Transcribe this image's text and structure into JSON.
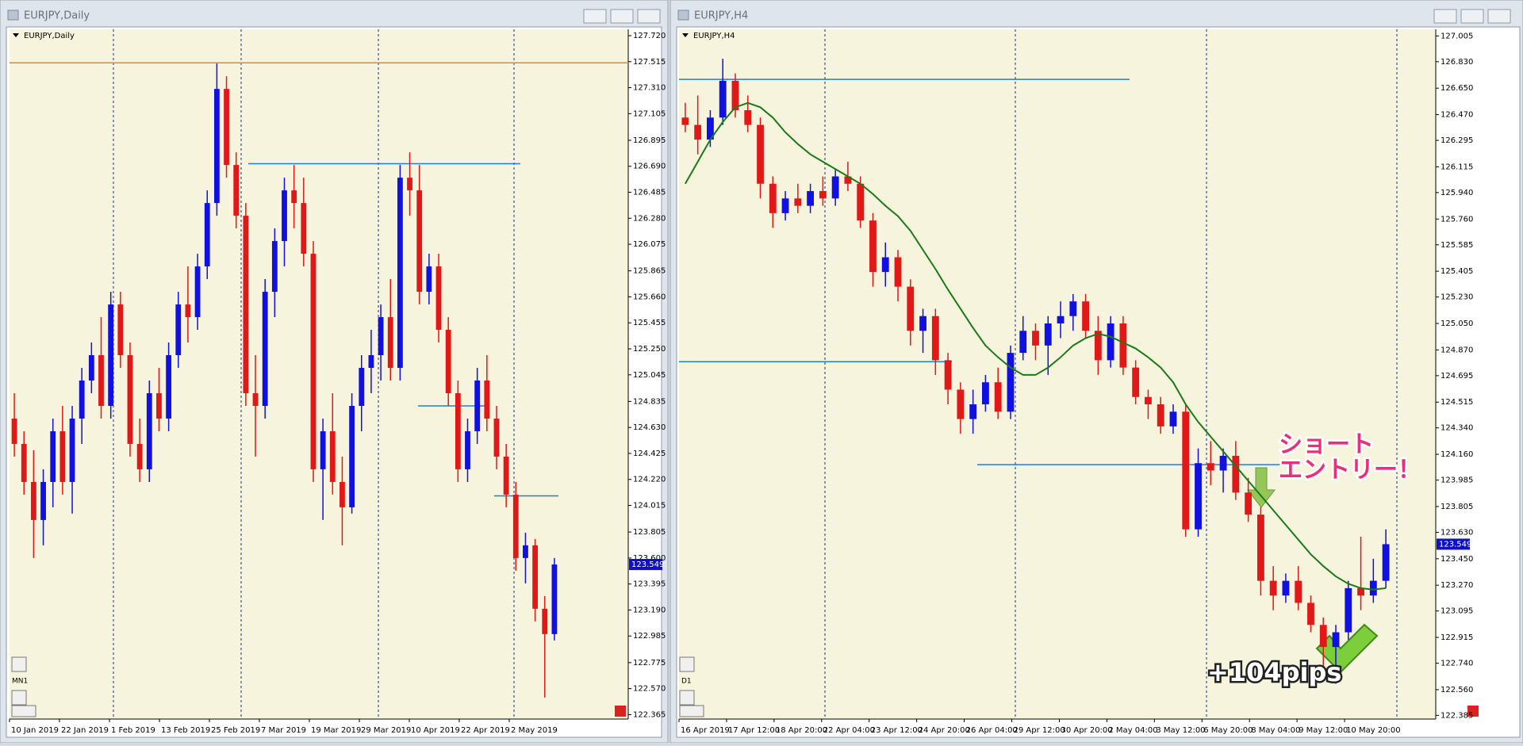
{
  "windows": [
    {
      "title": "EURJPY,Daily",
      "chart_label": "EURJPY,Daily",
      "period_label": "MN1",
      "ylim": [
        122.33,
        127.77
      ],
      "yticks": [
        {
          "value": 127.72,
          "label": "127.720"
        },
        127.515,
        {
          "value": 127.31,
          "label": "127.310"
        },
        127.105,
        126.895,
        {
          "value": 126.69,
          "label": "126.690"
        },
        126.485,
        {
          "value": 126.28,
          "label": "126.280"
        },
        126.075,
        125.865,
        {
          "value": 125.66,
          "label": "125.660"
        },
        125.455,
        {
          "value": 125.25,
          "label": "125.250"
        },
        125.045,
        124.835,
        {
          "value": 124.63,
          "label": "124.630"
        },
        124.425,
        {
          "value": 124.22,
          "label": "124.220"
        },
        124.015,
        123.805,
        {
          "value": 123.6,
          "label": "123.600"
        },
        123.395,
        {
          "value": 123.19,
          "label": "123.190"
        },
        122.985,
        122.775,
        {
          "value": 122.57,
          "label": "122.570"
        },
        122.365
      ],
      "x_labels": [
        "10 Jan 2019",
        "22 Jan 2019",
        "1 Feb 2019",
        "13 Feb 2019",
        "25 Feb 2019",
        "7 Mar 2019",
        "19 Mar 2019",
        "29 Mar 2019",
        "10 Apr 2019",
        "22 Apr 2019",
        "2 May 2019"
      ],
      "levels": [
        {
          "value": 127.506,
          "color": "#d98a2b"
        },
        {
          "value": 126.71,
          "color": "#1e7fd8"
        },
        {
          "value": 124.8,
          "color": "#1e7fd8"
        },
        {
          "value": 124.09,
          "color": "#1e7fd8"
        }
      ],
      "current_price": 123.549,
      "candles": [
        [
          124.7,
          124.9,
          124.4,
          124.5
        ],
        [
          124.5,
          124.6,
          124.1,
          124.2
        ],
        [
          124.2,
          124.45,
          123.6,
          123.9
        ],
        [
          123.9,
          124.3,
          123.7,
          124.2
        ],
        [
          124.2,
          124.7,
          124.0,
          124.6
        ],
        [
          124.6,
          124.8,
          124.1,
          124.2
        ],
        [
          124.2,
          124.8,
          123.95,
          124.7
        ],
        [
          124.7,
          125.1,
          124.5,
          125.0
        ],
        [
          125.0,
          125.3,
          124.9,
          125.2
        ],
        [
          125.2,
          125.5,
          124.7,
          124.8
        ],
        [
          124.8,
          125.7,
          124.7,
          125.6
        ],
        [
          125.6,
          125.7,
          125.1,
          125.2
        ],
        [
          125.2,
          125.3,
          124.4,
          124.5
        ],
        [
          124.5,
          124.7,
          124.2,
          124.3
        ],
        [
          124.3,
          125.0,
          124.2,
          124.9
        ],
        [
          124.9,
          125.1,
          124.6,
          124.7
        ],
        [
          124.7,
          125.3,
          124.6,
          125.2
        ],
        [
          125.2,
          125.7,
          125.1,
          125.6
        ],
        [
          125.6,
          125.9,
          125.3,
          125.5
        ],
        [
          125.5,
          126.0,
          125.4,
          125.9
        ],
        [
          125.9,
          126.5,
          125.8,
          126.4
        ],
        [
          126.4,
          127.5,
          126.3,
          127.3
        ],
        [
          127.3,
          127.4,
          126.6,
          126.7
        ],
        [
          126.7,
          126.8,
          126.2,
          126.3
        ],
        [
          126.3,
          126.4,
          124.8,
          124.9
        ],
        [
          124.9,
          125.2,
          124.4,
          124.8
        ],
        [
          124.8,
          125.8,
          124.7,
          125.7
        ],
        [
          125.7,
          126.2,
          125.5,
          126.1
        ],
        [
          126.1,
          126.6,
          125.9,
          126.5
        ],
        [
          126.5,
          126.7,
          126.2,
          126.4
        ],
        [
          126.4,
          126.6,
          125.9,
          126.0
        ],
        [
          126.0,
          126.1,
          124.2,
          124.3
        ],
        [
          124.3,
          124.7,
          123.9,
          124.6
        ],
        [
          124.6,
          124.9,
          124.1,
          124.2
        ],
        [
          124.2,
          124.4,
          123.7,
          124.0
        ],
        [
          124.0,
          124.9,
          123.95,
          124.8
        ],
        [
          124.8,
          125.2,
          124.6,
          125.1
        ],
        [
          125.1,
          125.4,
          124.9,
          125.2
        ],
        [
          125.2,
          125.6,
          125.0,
          125.5
        ],
        [
          125.5,
          125.8,
          125.0,
          125.1
        ],
        [
          125.1,
          126.7,
          125.0,
          126.6
        ],
        [
          126.6,
          126.8,
          126.3,
          126.5
        ],
        [
          126.5,
          126.7,
          125.6,
          125.7
        ],
        [
          125.7,
          126.0,
          125.6,
          125.9
        ],
        [
          125.9,
          126.0,
          125.3,
          125.4
        ],
        [
          125.4,
          125.5,
          124.8,
          124.9
        ],
        [
          124.9,
          125.0,
          124.2,
          124.3
        ],
        [
          124.3,
          124.7,
          124.2,
          124.6
        ],
        [
          124.6,
          125.1,
          124.5,
          125.0
        ],
        [
          125.0,
          125.2,
          124.6,
          124.7
        ],
        [
          124.7,
          124.8,
          124.3,
          124.4
        ],
        [
          124.4,
          124.5,
          124.0,
          124.1
        ],
        [
          124.1,
          124.2,
          123.5,
          123.6
        ],
        [
          123.6,
          123.8,
          123.4,
          123.7
        ],
        [
          123.7,
          123.75,
          123.1,
          123.2
        ],
        [
          123.2,
          123.3,
          122.5,
          123.0
        ],
        [
          123.0,
          123.6,
          122.95,
          123.549
        ]
      ]
    },
    {
      "title": "EURJPY,H4",
      "chart_label": "EURJPY,H4",
      "period_label": "D1",
      "ylim": [
        122.36,
        127.05
      ],
      "yticks": [
        127.005,
        {
          "value": 126.83,
          "label": "126.830"
        },
        {
          "value": 126.65,
          "label": "126.650"
        },
        {
          "value": 126.47,
          "label": "126.470"
        },
        126.295,
        126.115,
        {
          "value": 125.94,
          "label": "125.940"
        },
        {
          "value": 125.76,
          "label": "125.760"
        },
        125.585,
        125.405,
        {
          "value": 125.23,
          "label": "125.230"
        },
        {
          "value": 125.05,
          "label": "125.050"
        },
        {
          "value": 124.87,
          "label": "124.870"
        },
        124.695,
        124.515,
        {
          "value": 124.34,
          "label": "124.340"
        },
        {
          "value": 124.16,
          "label": "124.160"
        },
        123.985,
        123.805,
        {
          "value": 123.63,
          "label": "123.630"
        },
        {
          "value": 123.45,
          "label": "123.450"
        },
        {
          "value": 123.27,
          "label": "123.270"
        },
        123.095,
        122.915,
        {
          "value": 122.74,
          "label": "122.740"
        },
        {
          "value": 122.56,
          "label": "122.560"
        },
        122.385
      ],
      "x_labels": [
        "16 Apr 2019",
        "17 Apr 12:00",
        "18 Apr 20:00",
        "22 Apr 04:00",
        "23 Apr 12:00",
        "24 Apr 20:00",
        "26 Apr 04:00",
        "29 Apr 12:00",
        "30 Apr 20:00",
        "2 May 04:00",
        "3 May 12:00",
        "6 May 20:00",
        "8 May 04:00",
        "9 May 12:00",
        "10 May 20:00"
      ],
      "levels": [
        {
          "value": 126.71,
          "color": "#1e7fd8"
        },
        {
          "value": 124.79,
          "color": "#1e7fd8"
        },
        {
          "value": 124.09,
          "color": "#1e7fd8"
        }
      ],
      "current_price": 123.549,
      "ma_color": "#1a7a1a",
      "ma": [
        126.0,
        126.15,
        126.3,
        126.42,
        126.52,
        126.55,
        126.52,
        126.45,
        126.35,
        126.27,
        126.2,
        126.15,
        126.1,
        126.05,
        126.0,
        125.93,
        125.85,
        125.78,
        125.68,
        125.55,
        125.42,
        125.28,
        125.15,
        125.02,
        124.9,
        124.82,
        124.75,
        124.7,
        124.7,
        124.75,
        124.82,
        124.9,
        124.95,
        124.98,
        124.96,
        124.92,
        124.88,
        124.82,
        124.75,
        124.65,
        124.5,
        124.38,
        124.28,
        124.18,
        124.08,
        123.98,
        123.88,
        123.78,
        123.68,
        123.58,
        123.48,
        123.4,
        123.33,
        123.28,
        123.25,
        123.24,
        123.25
      ],
      "candles": [
        [
          126.45,
          126.55,
          126.35,
          126.4
        ],
        [
          126.4,
          126.6,
          126.2,
          126.3
        ],
        [
          126.3,
          126.5,
          126.25,
          126.45
        ],
        [
          126.45,
          126.85,
          126.4,
          126.7
        ],
        [
          126.7,
          126.75,
          126.45,
          126.5
        ],
        [
          126.5,
          126.6,
          126.35,
          126.4
        ],
        [
          126.4,
          126.45,
          125.9,
          126.0
        ],
        [
          126.0,
          126.05,
          125.7,
          125.8
        ],
        [
          125.8,
          125.95,
          125.75,
          125.9
        ],
        [
          125.9,
          126.0,
          125.8,
          125.85
        ],
        [
          125.85,
          126.0,
          125.8,
          125.95
        ],
        [
          125.95,
          126.05,
          125.85,
          125.9
        ],
        [
          125.9,
          126.1,
          125.85,
          126.05
        ],
        [
          126.05,
          126.15,
          125.95,
          126.0
        ],
        [
          126.0,
          126.05,
          125.7,
          125.75
        ],
        [
          125.75,
          125.8,
          125.3,
          125.4
        ],
        [
          125.4,
          125.6,
          125.3,
          125.5
        ],
        [
          125.5,
          125.55,
          125.2,
          125.3
        ],
        [
          125.3,
          125.35,
          124.9,
          125.0
        ],
        [
          125.0,
          125.15,
          124.85,
          125.1
        ],
        [
          125.1,
          125.15,
          124.7,
          124.8
        ],
        [
          124.8,
          124.85,
          124.5,
          124.6
        ],
        [
          124.6,
          124.65,
          124.3,
          124.4
        ],
        [
          124.4,
          124.6,
          124.3,
          124.5
        ],
        [
          124.5,
          124.7,
          124.45,
          124.65
        ],
        [
          124.65,
          124.75,
          124.4,
          124.45
        ],
        [
          124.45,
          124.9,
          124.4,
          124.85
        ],
        [
          124.85,
          125.1,
          124.8,
          125.0
        ],
        [
          125.0,
          125.05,
          124.8,
          124.9
        ],
        [
          124.9,
          125.1,
          124.7,
          125.05
        ],
        [
          125.05,
          125.2,
          124.95,
          125.1
        ],
        [
          125.1,
          125.25,
          125.0,
          125.2
        ],
        [
          125.2,
          125.25,
          124.95,
          125.0
        ],
        [
          125.0,
          125.1,
          124.7,
          124.8
        ],
        [
          124.8,
          125.1,
          124.75,
          125.05
        ],
        [
          125.05,
          125.1,
          124.7,
          124.75
        ],
        [
          124.75,
          124.8,
          124.5,
          124.55
        ],
        [
          124.55,
          124.6,
          124.4,
          124.5
        ],
        [
          124.5,
          124.55,
          124.3,
          124.35
        ],
        [
          124.35,
          124.5,
          124.3,
          124.45
        ],
        [
          124.45,
          124.5,
          123.6,
          123.65
        ],
        [
          123.65,
          124.2,
          123.6,
          124.1
        ],
        [
          124.1,
          124.25,
          123.95,
          124.05
        ],
        [
          124.05,
          124.2,
          123.9,
          124.15
        ],
        [
          124.15,
          124.25,
          123.85,
          123.9
        ],
        [
          123.9,
          124.0,
          123.7,
          123.75
        ],
        [
          123.75,
          123.8,
          123.2,
          123.3
        ],
        [
          123.3,
          123.4,
          123.1,
          123.2
        ],
        [
          123.2,
          123.35,
          123.15,
          123.3
        ],
        [
          123.3,
          123.4,
          123.1,
          123.15
        ],
        [
          123.15,
          123.2,
          122.95,
          123.0
        ],
        [
          123.0,
          123.05,
          122.7,
          122.85
        ],
        [
          122.85,
          123.0,
          122.6,
          122.95
        ],
        [
          122.95,
          123.3,
          122.9,
          123.25
        ],
        [
          123.25,
          123.6,
          123.1,
          123.2
        ],
        [
          123.2,
          123.45,
          123.15,
          123.3
        ],
        [
          123.3,
          123.65,
          123.25,
          123.549
        ]
      ],
      "annotations": {
        "entry_line1": "ショート",
        "entry_line2": "エントリー！",
        "result": "+104pips"
      }
    }
  ]
}
